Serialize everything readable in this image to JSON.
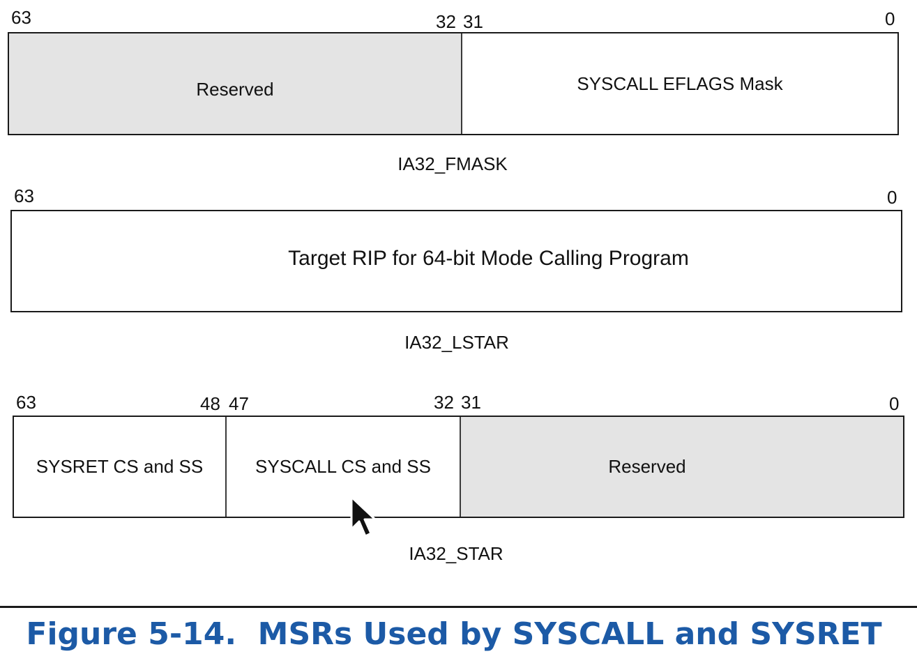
{
  "fmask": {
    "bits": {
      "b63": "63",
      "b32": "32",
      "b31": "31",
      "b0": "0"
    },
    "fields": {
      "reserved": "Reserved",
      "mask": "SYSCALL EFLAGS Mask"
    },
    "name": "IA32_FMASK"
  },
  "lstar": {
    "bits": {
      "b63": "63",
      "b0": "0"
    },
    "fields": {
      "target": "Target RIP for 64-bit Mode Calling Program"
    },
    "name": "IA32_LSTAR"
  },
  "star": {
    "bits": {
      "b63": "63",
      "b48": "48",
      "b47": "47",
      "b32": "32",
      "b31": "31",
      "b0": "0"
    },
    "fields": {
      "sysret": "SYSRET CS and SS",
      "syscall": "SYSCALL CS and SS",
      "reserved": "Reserved"
    },
    "name": "IA32_STAR"
  },
  "caption": "Figure 5-14.  MSRs Used by SYSCALL and SYSRET",
  "colors": {
    "caption": "#1c5aa6",
    "reserved_fill": "#e4e4e4",
    "border": "#1a1a1a"
  },
  "cursor_icon": "mouse-pointer-icon"
}
